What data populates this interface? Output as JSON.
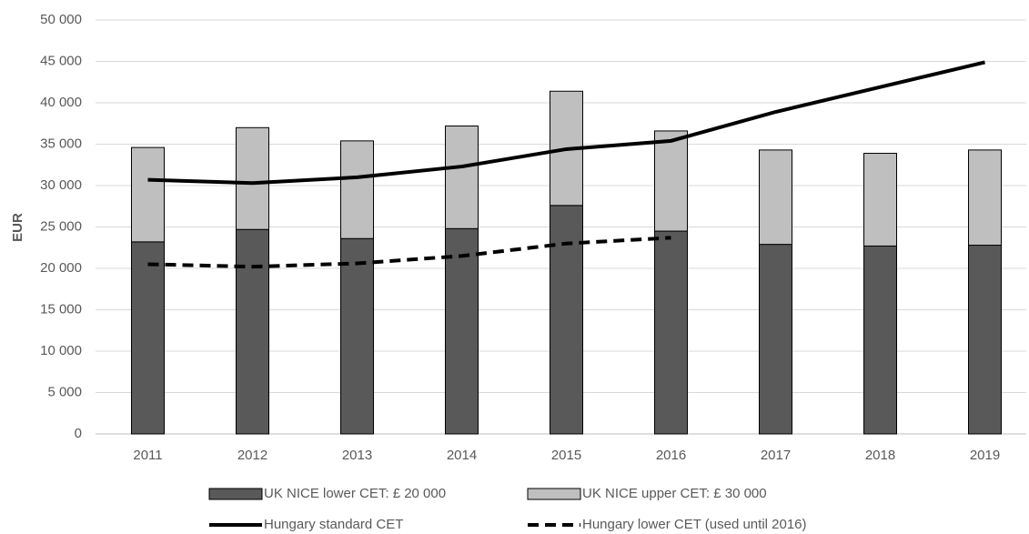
{
  "chart_data": {
    "type": "bar",
    "ylabel": "EUR",
    "categories": [
      "2011",
      "2012",
      "2013",
      "2014",
      "2015",
      "2016",
      "2017",
      "2018",
      "2019"
    ],
    "series": [
      {
        "name": "UK NICE lower CET: £ 20 000",
        "kind": "bar",
        "color": "#595959",
        "values": [
          23200,
          24700,
          23600,
          24800,
          27600,
          24500,
          22900,
          22700,
          22800
        ]
      },
      {
        "name": "UK NICE upper CET: £ 30 000",
        "kind": "bar",
        "color": "#bfbfbf",
        "values": [
          11400,
          12300,
          11800,
          12400,
          13800,
          12100,
          11400,
          11200,
          11500
        ]
      },
      {
        "name": "Hungary standard CET",
        "kind": "line",
        "color": "#000000",
        "dashed": false,
        "values": [
          30700,
          30300,
          31000,
          32300,
          34400,
          35400,
          38900,
          41900,
          44900
        ]
      },
      {
        "name": "Hungary lower CET (used until 2016)",
        "kind": "line",
        "color": "#000000",
        "dashed": true,
        "values": [
          20500,
          20200,
          20600,
          21500,
          23000,
          23700,
          null,
          null,
          null
        ]
      }
    ],
    "stacked": true,
    "ylim": [
      0,
      50000
    ],
    "yticks": [
      0,
      {
        "value": 5000,
        "label": "5 000"
      },
      {
        "value": 10000,
        "label": "10 000"
      },
      {
        "value": 15000,
        "label": "15 000"
      },
      {
        "value": 20000,
        "label": "20 000"
      },
      {
        "value": 25000,
        "label": "25 000"
      },
      {
        "value": 30000,
        "label": "30 000"
      },
      {
        "value": 35000,
        "label": "35 000"
      },
      {
        "value": 40000,
        "label": "40 000"
      },
      {
        "value": 45000,
        "label": "45 000"
      },
      {
        "value": 50000,
        "label": "50 000"
      }
    ],
    "grid": true,
    "legend": "bottom"
  }
}
